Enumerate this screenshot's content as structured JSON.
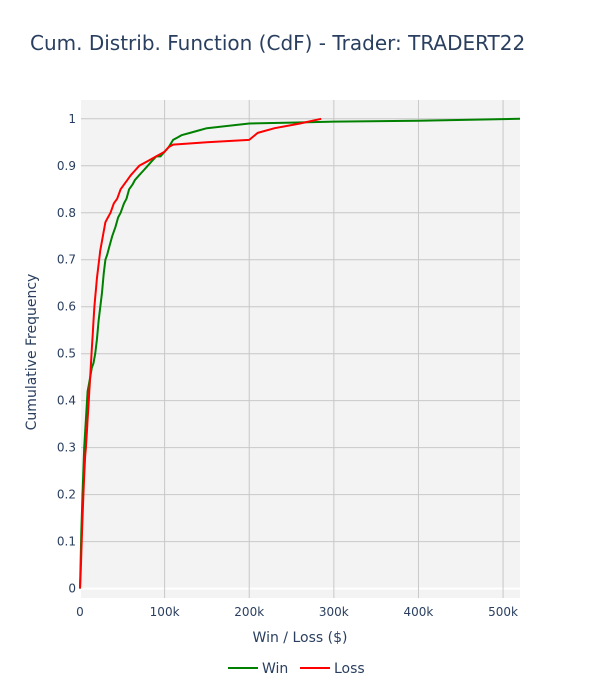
{
  "chart_data": {
    "type": "line",
    "title": "Cum. Distrib. Function (CdF) - Trader: TRADERT22",
    "xlabel": "Win / Loss ($)",
    "ylabel": "Cumulative Frequency",
    "xlim": [
      0,
      520000
    ],
    "ylim": [
      -0.02,
      1.04
    ],
    "x_ticks": [
      {
        "value": 0,
        "label": "0"
      },
      {
        "value": 100000,
        "label": "100k"
      },
      {
        "value": 200000,
        "label": "200k"
      },
      {
        "value": 300000,
        "label": "300k"
      },
      {
        "value": 400000,
        "label": "400k"
      },
      {
        "value": 500000,
        "label": "500k"
      }
    ],
    "y_ticks": [
      {
        "value": 0,
        "label": "0"
      },
      {
        "value": 0.1,
        "label": "0.1"
      },
      {
        "value": 0.2,
        "label": "0.2"
      },
      {
        "value": 0.3,
        "label": "0.3"
      },
      {
        "value": 0.4,
        "label": "0.4"
      },
      {
        "value": 0.5,
        "label": "0.5"
      },
      {
        "value": 0.6,
        "label": "0.6"
      },
      {
        "value": 0.7,
        "label": "0.7"
      },
      {
        "value": 0.8,
        "label": "0.8"
      },
      {
        "value": 0.9,
        "label": "0.9"
      },
      {
        "value": 1,
        "label": "1"
      }
    ],
    "grid": true,
    "legend_position": "bottom-center",
    "series": [
      {
        "name": "Win",
        "color": "#008000",
        "x": [
          0,
          1500,
          3000,
          5000,
          7000,
          9000,
          10000,
          12000,
          14000,
          16000,
          18000,
          20000,
          22000,
          24000,
          26000,
          28000,
          30000,
          32000,
          35000,
          38000,
          42000,
          45000,
          48000,
          52000,
          55000,
          58000,
          62000,
          65000,
          70000,
          75000,
          80000,
          85000,
          90000,
          95000,
          100000,
          105000,
          110000,
          115000,
          120000,
          130000,
          140000,
          150000,
          200000,
          250000,
          300000,
          400000,
          520000
        ],
        "y": [
          0,
          0.12,
          0.2,
          0.3,
          0.36,
          0.42,
          0.43,
          0.45,
          0.47,
          0.48,
          0.5,
          0.53,
          0.57,
          0.6,
          0.63,
          0.67,
          0.7,
          0.71,
          0.73,
          0.75,
          0.77,
          0.79,
          0.8,
          0.82,
          0.83,
          0.85,
          0.86,
          0.87,
          0.88,
          0.89,
          0.9,
          0.91,
          0.92,
          0.92,
          0.93,
          0.94,
          0.955,
          0.96,
          0.965,
          0.97,
          0.975,
          0.98,
          0.99,
          0.992,
          0.994,
          0.996,
          1.0
        ]
      },
      {
        "name": "Loss",
        "color": "#ff0000",
        "x": [
          0,
          1000,
          2000,
          3000,
          4000,
          5000,
          6000,
          7000,
          8000,
          9000,
          10000,
          11000,
          12000,
          13000,
          14000,
          15000,
          16000,
          17000,
          18000,
          19000,
          20000,
          22000,
          24000,
          26000,
          28000,
          30000,
          33000,
          36000,
          40000,
          44000,
          48000,
          52000,
          56000,
          60000,
          65000,
          70000,
          80000,
          90000,
          100000,
          105000,
          110000,
          150000,
          200000,
          210000,
          230000,
          260000,
          285000
        ],
        "y": [
          0,
          0.04,
          0.1,
          0.15,
          0.2,
          0.24,
          0.28,
          0.3,
          0.33,
          0.36,
          0.39,
          0.42,
          0.45,
          0.48,
          0.51,
          0.54,
          0.57,
          0.6,
          0.62,
          0.64,
          0.66,
          0.69,
          0.72,
          0.74,
          0.76,
          0.78,
          0.79,
          0.8,
          0.82,
          0.83,
          0.85,
          0.86,
          0.87,
          0.88,
          0.89,
          0.9,
          0.91,
          0.92,
          0.93,
          0.94,
          0.945,
          0.95,
          0.955,
          0.97,
          0.98,
          0.99,
          1.0
        ]
      }
    ]
  }
}
